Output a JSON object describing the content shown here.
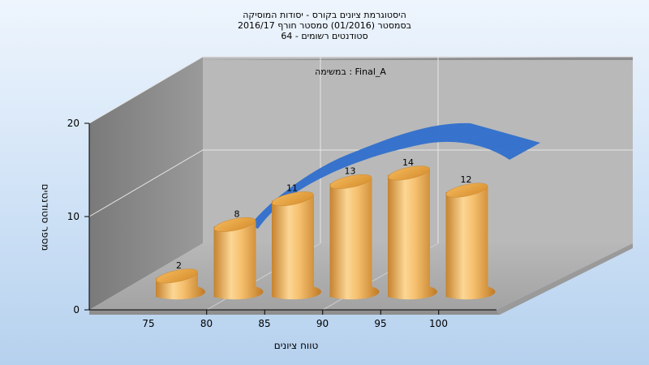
{
  "chart_data": {
    "type": "bar",
    "title_lines": [
      "היסטוגרמת ציונים בקורס - יסודות המוסיקה",
      "בסמסטר  (01/2016)  סמסטר חורף 2016/17",
      "סטודנטים רשומים - 64"
    ],
    "annotation": "במשימה : Final_A",
    "xlabel": "טווח ציונים",
    "ylabel": "מספר סטודנטים",
    "x_ticks": [
      "75",
      "80",
      "85",
      "90",
      "95",
      "100"
    ],
    "y_ticks": [
      "0",
      "10",
      "20"
    ],
    "ylim": [
      0,
      20
    ],
    "values": [
      2,
      8,
      11,
      13,
      14,
      12
    ],
    "value_labels": [
      "2",
      "8",
      "11",
      "13",
      "14",
      "12"
    ],
    "series_color": "#e9a343",
    "curve_color": "#2f6fcc",
    "grid": true
  }
}
